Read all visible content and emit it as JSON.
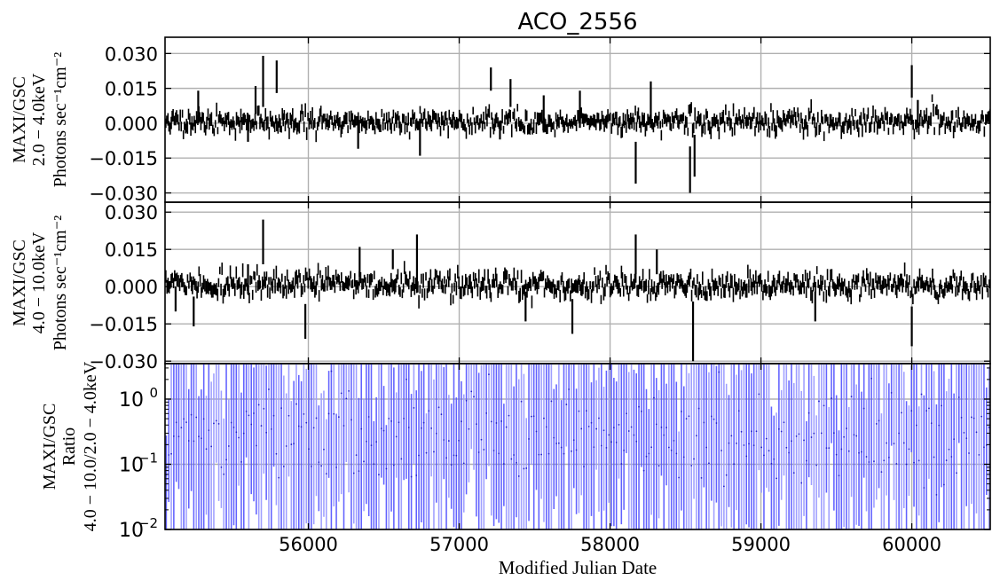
{
  "chart_data": {
    "type": "line",
    "title": "ACO_2556",
    "xlabel": "Modified Julian Date",
    "xlim": [
      55050,
      60520
    ],
    "x_ticks": [
      "56000",
      "57000",
      "58000",
      "59000",
      "60000"
    ],
    "panels": [
      {
        "name": "2.0-4.0 keV light curve",
        "ylabel_lines": [
          "MAXI/GSC",
          "2.0 − 4.0keV",
          "Photons sec⁻¹cm⁻²"
        ],
        "ylim": [
          -0.034,
          0.037
        ],
        "y_ticks": [
          "0.030",
          "0.015",
          "0.000",
          "−0.015",
          "−0.030"
        ],
        "grid": true,
        "color": "#000000",
        "seed": 11,
        "noise_sd": 0.0022,
        "err_range": [
          0.003,
          0.006
        ],
        "spikes": [
          {
            "x": 55270,
            "y": 0.007,
            "err": 0.007
          },
          {
            "x": 55600,
            "y": -0.002,
            "err": 0.006
          },
          {
            "x": 55650,
            "y": 0.01,
            "err": 0.006
          },
          {
            "x": 55700,
            "y": 0.018,
            "err": 0.011
          },
          {
            "x": 55790,
            "y": 0.02,
            "err": 0.007
          },
          {
            "x": 56330,
            "y": -0.004,
            "err": 0.007
          },
          {
            "x": 56740,
            "y": -0.006,
            "err": 0.008
          },
          {
            "x": 57210,
            "y": 0.019,
            "err": 0.005
          },
          {
            "x": 57270,
            "y": -0.003,
            "err": 0.004
          },
          {
            "x": 57340,
            "y": 0.013,
            "err": 0.006
          },
          {
            "x": 57560,
            "y": 0.004,
            "err": 0.008
          },
          {
            "x": 57800,
            "y": 0.006,
            "err": 0.008
          },
          {
            "x": 58170,
            "y": -0.017,
            "err": 0.009
          },
          {
            "x": 58270,
            "y": 0.008,
            "err": 0.01
          },
          {
            "x": 58530,
            "y": -0.02,
            "err": 0.01
          },
          {
            "x": 58560,
            "y": -0.014,
            "err": 0.009
          },
          {
            "x": 60000,
            "y": 0.018,
            "err": 0.007
          },
          {
            "x": 60040,
            "y": 0.004,
            "err": 0.006
          }
        ]
      },
      {
        "name": "4.0-10.0 keV light curve",
        "ylabel_lines": [
          "MAXI/GSC",
          "4.0 − 10.0keV",
          "Photons sec⁻¹cm⁻²"
        ],
        "ylim": [
          -0.031,
          0.034
        ],
        "y_ticks": [
          "0.030",
          "0.015",
          "0.000",
          "−0.015",
          "−0.030"
        ],
        "grid": true,
        "color": "#000000",
        "seed": 29,
        "noise_sd": 0.0025,
        "err_range": [
          0.003,
          0.006
        ],
        "spikes": [
          {
            "x": 55120,
            "y": -0.005,
            "err": 0.005
          },
          {
            "x": 55240,
            "y": -0.01,
            "err": 0.006
          },
          {
            "x": 55600,
            "y": 0.003,
            "err": 0.006
          },
          {
            "x": 55700,
            "y": 0.018,
            "err": 0.009
          },
          {
            "x": 55980,
            "y": -0.014,
            "err": 0.007
          },
          {
            "x": 56340,
            "y": 0.01,
            "err": 0.006
          },
          {
            "x": 56560,
            "y": 0.011,
            "err": 0.004
          },
          {
            "x": 56720,
            "y": 0.011,
            "err": 0.01
          },
          {
            "x": 57440,
            "y": -0.008,
            "err": 0.006
          },
          {
            "x": 57750,
            "y": -0.012,
            "err": 0.007
          },
          {
            "x": 58170,
            "y": 0.013,
            "err": 0.008
          },
          {
            "x": 58310,
            "y": 0.01,
            "err": 0.005
          },
          {
            "x": 58550,
            "y": -0.018,
            "err": 0.012
          },
          {
            "x": 59360,
            "y": -0.008,
            "err": 0.006
          },
          {
            "x": 60000,
            "y": -0.016,
            "err": 0.008
          }
        ]
      },
      {
        "name": "hardness ratio",
        "ylabel_lines": [
          "MAXI/GSC",
          "Ratio",
          "4.0 − 10.0/2.0 − 4.0keV"
        ],
        "log_scale": true,
        "ylim": [
          0.01,
          3.5
        ],
        "y_ticks": [
          "10^-2",
          "10^-1",
          "10^0"
        ],
        "grid": true,
        "color": "#3a3aff",
        "seed": 47,
        "n_bins": 330
      }
    ]
  }
}
